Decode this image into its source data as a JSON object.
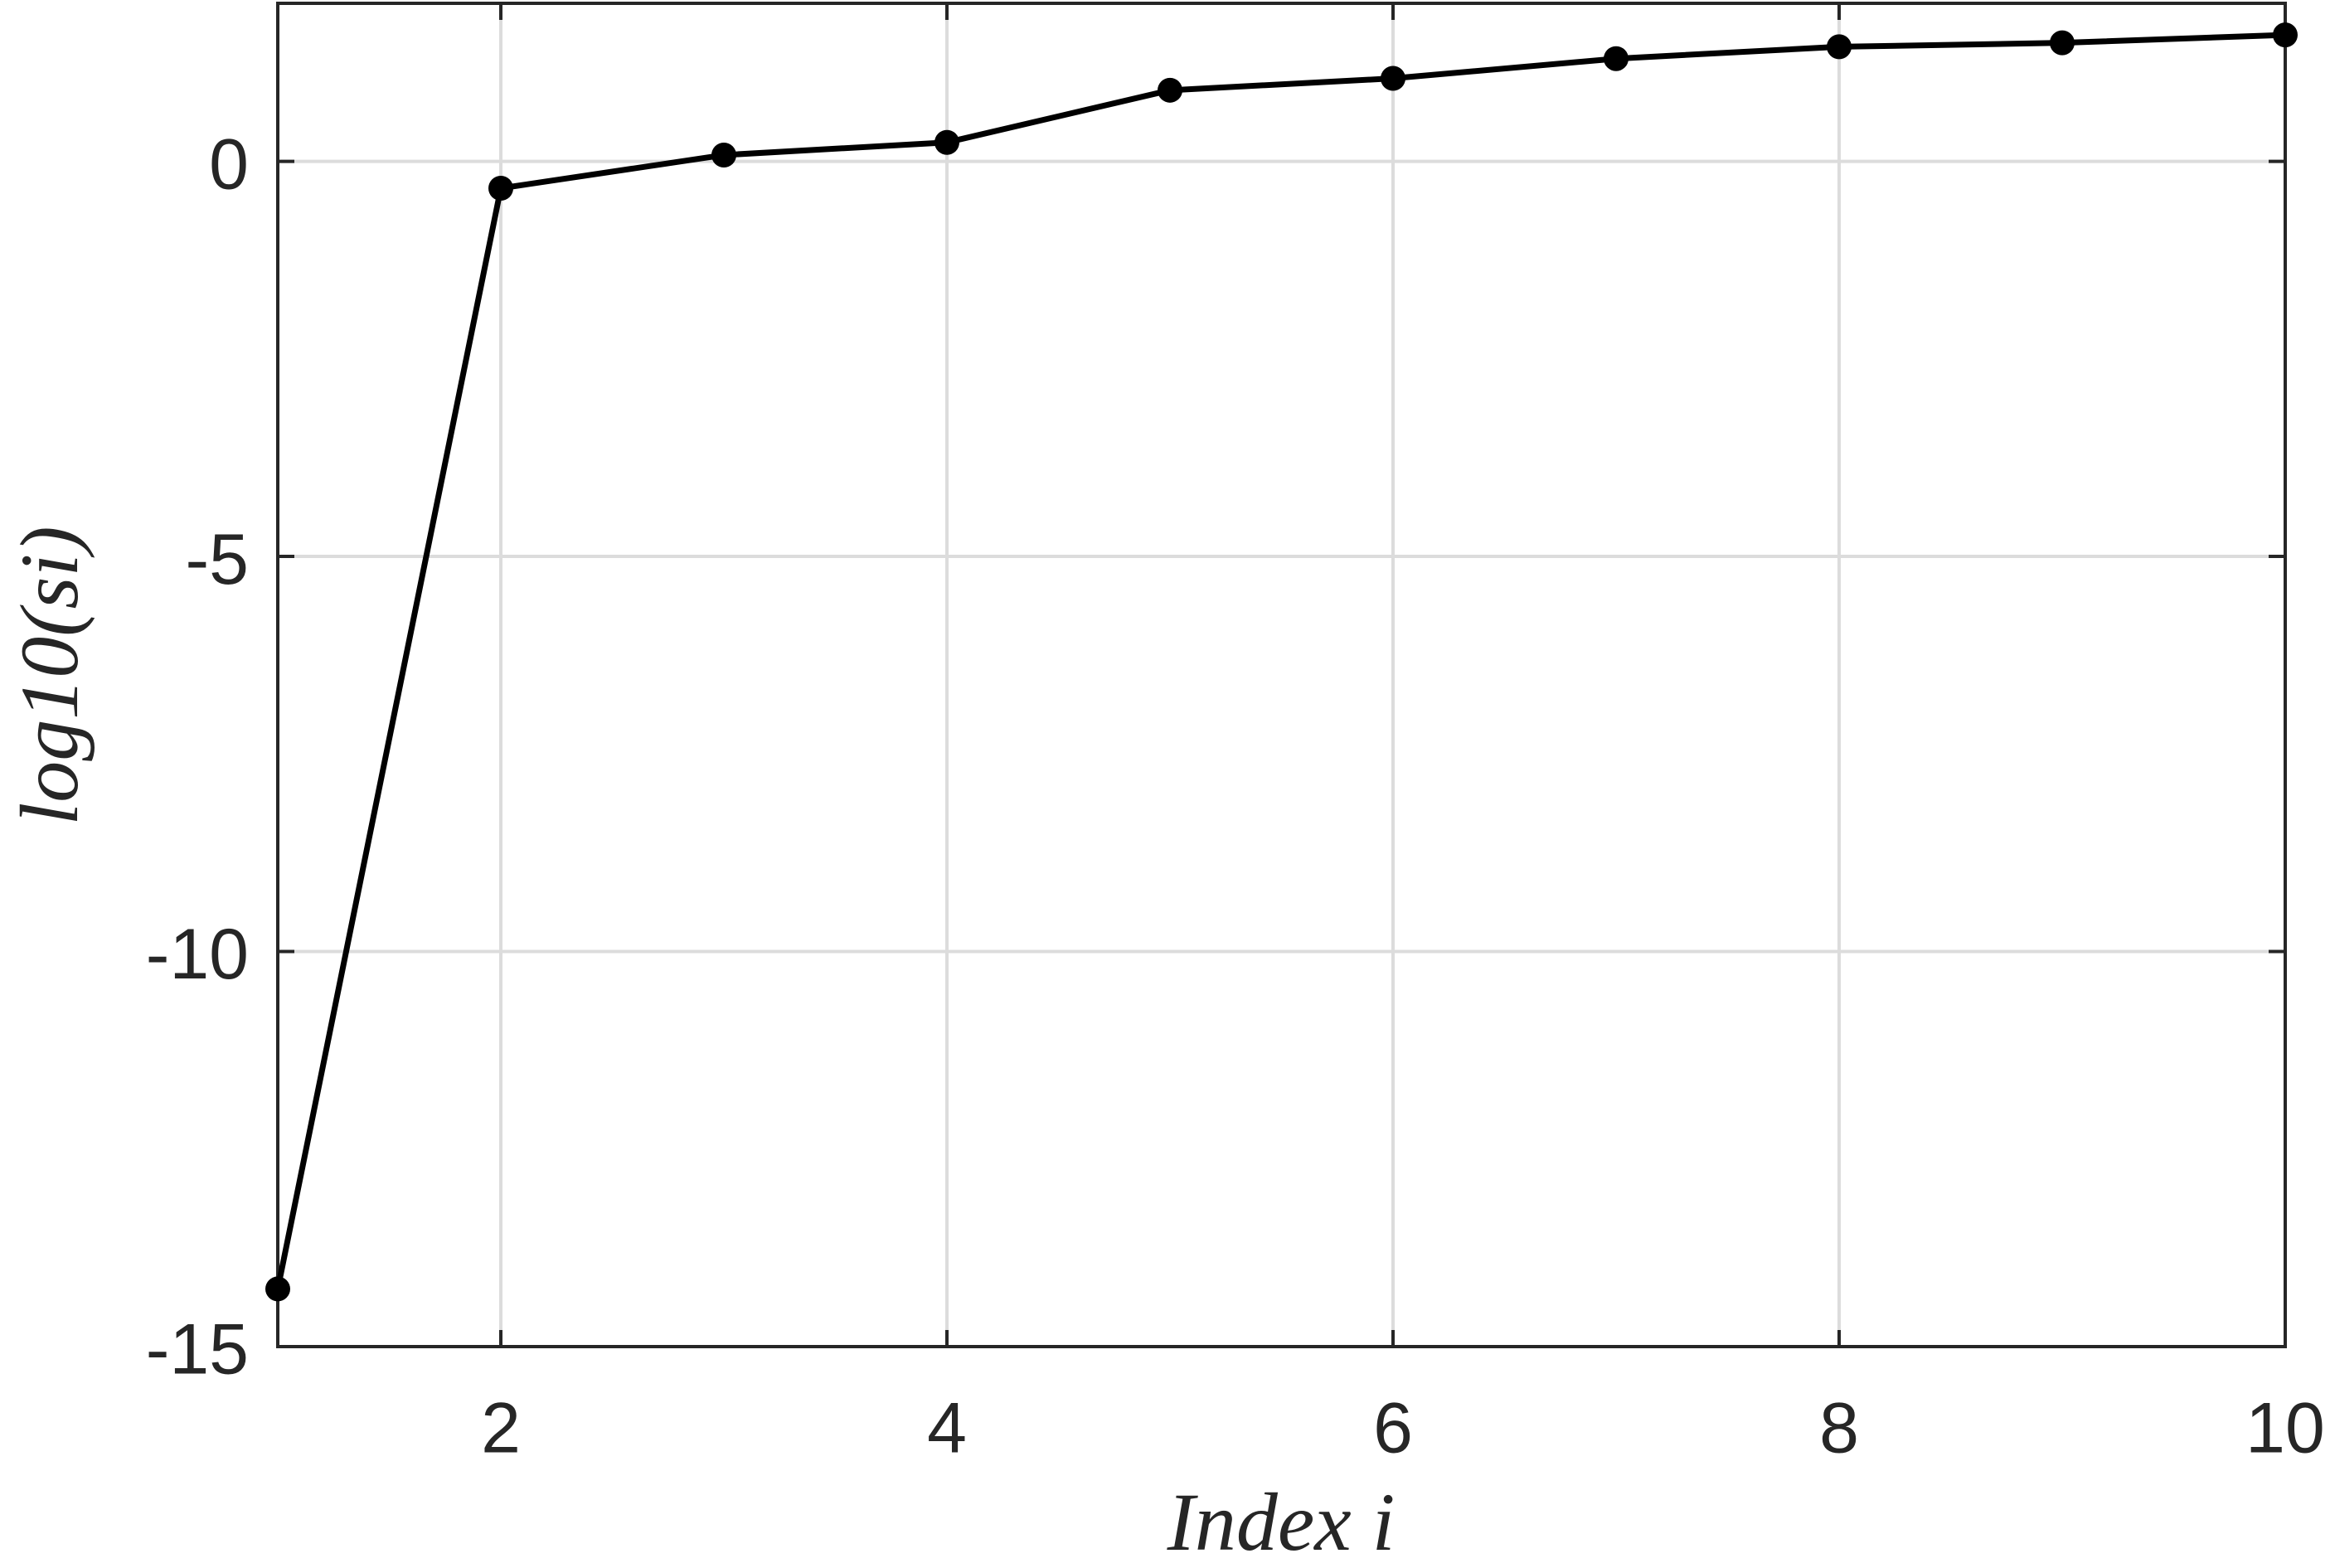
{
  "chart_data": {
    "type": "line",
    "x_label": "Index i",
    "y_label": "log10(si)",
    "x": [
      1,
      2,
      3,
      4,
      5,
      6,
      7,
      8,
      9,
      10
    ],
    "series": [
      {
        "color": "#000000",
        "values": [
          -14.27,
          -0.34,
          0.08,
          0.24,
          0.9,
          1.05,
          1.3,
          1.45,
          1.5,
          1.6
        ]
      }
    ],
    "xlim": [
      1,
      10
    ],
    "xticks": [
      2,
      4,
      6,
      8,
      10
    ],
    "ylim": [
      -15,
      2
    ],
    "yticks": [
      -15,
      -10,
      -5,
      0
    ],
    "grid": true
  }
}
